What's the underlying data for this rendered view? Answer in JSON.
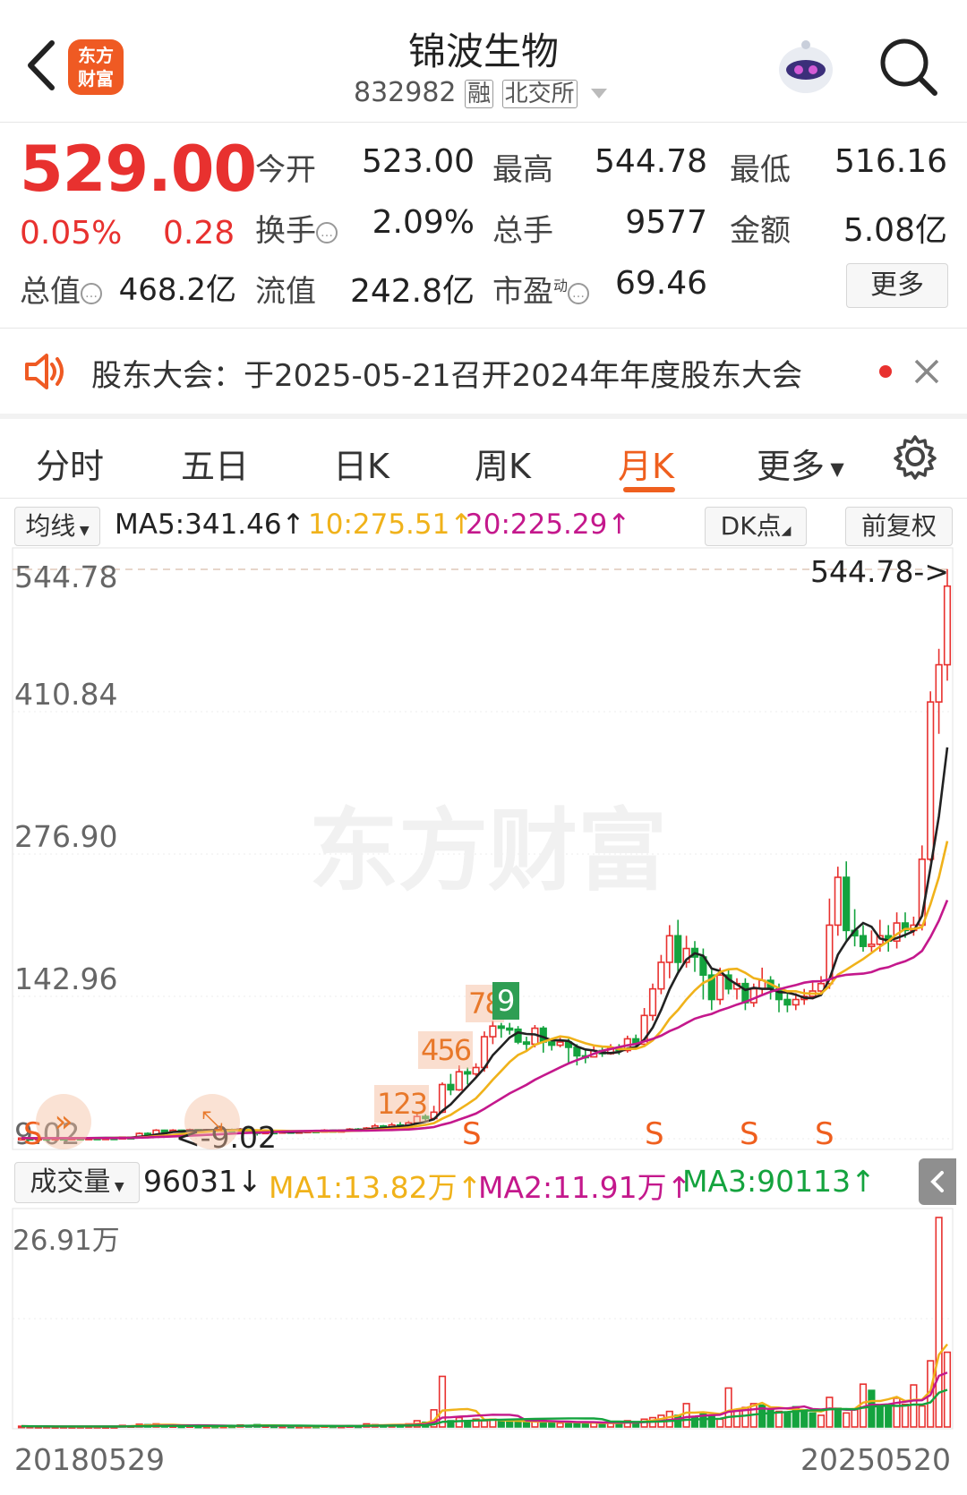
{
  "header": {
    "brand": "东方财富",
    "title": "锦波生物",
    "code": "832982",
    "tags": [
      "融",
      "北交所"
    ]
  },
  "quote": {
    "price": "529.00",
    "change_pct": "0.05%",
    "change": "0.28",
    "open_label": "今开",
    "open": "523.00",
    "high_label": "最高",
    "high": "544.78",
    "low_label": "最低",
    "low": "516.16",
    "turnover_label": "换手",
    "turnover": "2.09%",
    "volume_label": "总手",
    "volume": "9577",
    "amount_label": "金额",
    "amount": "5.08亿",
    "mktcap_label": "总值",
    "mktcap": "468.2亿",
    "float_label": "流值",
    "float": "242.8亿",
    "pe_label": "市盈",
    "pe_sup": "动",
    "pe": "69.46",
    "more_label": "更多"
  },
  "notice": {
    "text": "股东大会：于2025-05-21召开2024年年度股东大会"
  },
  "tabs": [
    "分时",
    "五日",
    "日K",
    "周K",
    "月K",
    "更多"
  ],
  "active_tab": "月K",
  "ma_bar": {
    "selector": "均线",
    "ma5": "MA5:341.46",
    "ma10": "10:275.51",
    "ma20": "20:225.29",
    "dk_label": "DK点",
    "adjust_label": "前复权",
    "colors": {
      "ma5": "#222222",
      "ma10": "#f0b21a",
      "ma20": "#c4188c"
    }
  },
  "vol_bar": {
    "selector": "成交量",
    "value": "96031",
    "ma1": "MA1:13.82万",
    "ma2": "MA2:11.91万",
    "ma3": "MA3:90113",
    "colors": {
      "ma1": "#f0b21a",
      "ma2": "#c4188c",
      "ma3": "#14a33e"
    }
  },
  "chart_data": {
    "type": "candlestick",
    "y_ticks": [
      "544.78",
      "410.84",
      "276.90",
      "142.96",
      "9.02"
    ],
    "high_marker": "544.78->",
    "low_marker": "<-9.02",
    "watermark": "东方财富",
    "signals": [
      "123",
      "456",
      "78",
      "9"
    ],
    "s_marker": "S",
    "vol_max_label": "26.91万",
    "x_start": "20180529",
    "x_end": "20250520",
    "candles": [
      [
        9.5,
        9.6,
        9.9,
        9.2
      ],
      [
        9.6,
        9.4,
        9.8,
        9.1
      ],
      [
        9.4,
        9.6,
        9.9,
        9.2
      ],
      [
        9.6,
        9.5,
        9.8,
        9.2
      ],
      [
        9.5,
        9.6,
        9.8,
        9.3
      ],
      [
        9.6,
        9.5,
        9.9,
        9.2
      ],
      [
        9.5,
        9.7,
        10.0,
        9.3
      ],
      [
        9.7,
        9.6,
        9.9,
        9.3
      ],
      [
        9.6,
        9.8,
        10.2,
        9.4
      ],
      [
        9.8,
        9.7,
        10.1,
        9.5
      ],
      [
        9.7,
        9.9,
        10.2,
        9.5
      ],
      [
        9.9,
        9.8,
        10.1,
        9.5
      ],
      [
        9.8,
        10.5,
        11.0,
        9.6
      ],
      [
        10.5,
        10.3,
        10.9,
        10.0
      ],
      [
        10.3,
        14.0,
        15.0,
        10.2
      ],
      [
        14.0,
        13.0,
        15.0,
        12.5
      ],
      [
        13.0,
        17.0,
        18.0,
        12.8
      ],
      [
        17.0,
        15.5,
        17.5,
        15.0
      ],
      [
        15.5,
        17.0,
        18.0,
        15.2
      ],
      [
        17.0,
        16.5,
        17.5,
        16.0
      ],
      [
        16.5,
        17.5,
        18.5,
        16.2
      ],
      [
        17.5,
        17.0,
        18.0,
        16.5
      ],
      [
        17.0,
        17.5,
        18.0,
        16.6
      ],
      [
        17.5,
        17.0,
        18.0,
        16.5
      ],
      [
        17.0,
        17.5,
        18.0,
        16.7
      ],
      [
        17.5,
        17.0,
        18.5,
        16.5
      ],
      [
        17.0,
        18.0,
        19.0,
        16.8
      ],
      [
        18.0,
        17.0,
        18.5,
        16.5
      ],
      [
        17.0,
        14.0,
        17.0,
        12.0
      ],
      [
        14.0,
        15.5,
        16.0,
        13.5
      ],
      [
        15.5,
        15.0,
        16.0,
        14.5
      ],
      [
        15.0,
        16.0,
        16.5,
        14.8
      ],
      [
        16.0,
        15.5,
        16.5,
        15.0
      ],
      [
        15.5,
        16.0,
        16.5,
        15.0
      ],
      [
        16.0,
        16.5,
        17.0,
        15.5
      ],
      [
        16.5,
        16.0,
        17.0,
        15.5
      ],
      [
        16.0,
        17.0,
        18.0,
        15.8
      ],
      [
        17.0,
        16.5,
        17.5,
        16.0
      ],
      [
        16.5,
        17.0,
        17.5,
        16.0
      ],
      [
        17.0,
        18.0,
        19.0,
        16.8
      ],
      [
        18.0,
        17.5,
        19.0,
        17.0
      ],
      [
        17.5,
        19.0,
        20.0,
        17.0
      ],
      [
        19.0,
        21.0,
        23.0,
        18.5
      ],
      [
        21.0,
        20.0,
        22.0,
        19.5
      ],
      [
        20.0,
        22.0,
        24.0,
        19.5
      ],
      [
        22.0,
        21.0,
        25.0,
        20.5
      ],
      [
        21.0,
        24.0,
        26.0,
        20.5
      ],
      [
        24.0,
        30.0,
        33.0,
        23.0
      ],
      [
        30.0,
        28.0,
        32.0,
        26.0
      ],
      [
        28.0,
        34.0,
        40.0,
        27.0
      ],
      [
        34.0,
        60.0,
        62.0,
        33.0
      ],
      [
        60.0,
        55.0,
        70.0,
        50.0
      ],
      [
        55.0,
        72.0,
        78.0,
        54.0
      ],
      [
        72.0,
        70.0,
        76.0,
        60.0
      ],
      [
        70.0,
        76.0,
        80.0,
        68.0
      ],
      [
        76.0,
        105.0,
        110.0,
        72.0
      ],
      [
        105.0,
        115.0,
        120.0,
        98.0
      ],
      [
        115.0,
        113.0,
        118.0,
        104.0
      ],
      [
        113.0,
        112.0,
        118.0,
        107.0
      ],
      [
        112.0,
        100.0,
        115.0,
        98.0
      ],
      [
        100.0,
        98.0,
        105.0,
        92.0
      ],
      [
        98.0,
        113.0,
        116.0,
        95.0
      ],
      [
        113.0,
        100.0,
        115.0,
        90.0
      ],
      [
        100.0,
        97.0,
        102.0,
        92.0
      ],
      [
        97.0,
        100.0,
        104.0,
        95.0
      ],
      [
        100.0,
        95.0,
        103.0,
        80.0
      ],
      [
        95.0,
        87.0,
        98.0,
        78.0
      ],
      [
        87.0,
        86.0,
        92.0,
        80.0
      ],
      [
        86.0,
        92.0,
        96.0,
        86.0
      ],
      [
        92.0,
        89.0,
        95.0,
        86.0
      ],
      [
        89.0,
        94.0,
        98.0,
        88.0
      ],
      [
        94.0,
        92.0,
        98.0,
        88.0
      ],
      [
        92.0,
        103.0,
        106.0,
        90.0
      ],
      [
        103.0,
        98.0,
        107.0,
        94.0
      ],
      [
        98.0,
        125.0,
        132.0,
        96.0
      ],
      [
        125.0,
        150.0,
        155.0,
        120.0
      ],
      [
        150.0,
        175.0,
        182.0,
        145.0
      ],
      [
        175.0,
        200.0,
        210.0,
        160.0
      ],
      [
        200.0,
        175.0,
        215.0,
        165.0
      ],
      [
        175.0,
        188.0,
        200.0,
        170.0
      ],
      [
        188.0,
        180.0,
        195.0,
        166.0
      ],
      [
        180.0,
        163.0,
        188.0,
        140.0
      ],
      [
        163.0,
        140.0,
        168.0,
        130.0
      ],
      [
        140.0,
        163.0,
        170.0,
        135.0
      ],
      [
        163.0,
        150.0,
        168.0,
        145.0
      ],
      [
        150.0,
        155.0,
        160.0,
        140.0
      ],
      [
        155.0,
        137.0,
        160.0,
        130.0
      ],
      [
        137.0,
        150.0,
        155.0,
        133.0
      ],
      [
        150.0,
        158.0,
        170.0,
        145.0
      ],
      [
        158.0,
        150.0,
        162.0,
        140.0
      ],
      [
        150.0,
        140.0,
        155.0,
        128.0
      ],
      [
        140.0,
        135.0,
        146.0,
        128.0
      ],
      [
        135.0,
        140.0,
        146.0,
        130.0
      ],
      [
        140.0,
        143.0,
        150.0,
        135.0
      ],
      [
        143.0,
        148.0,
        156.0,
        140.0
      ],
      [
        148.0,
        155.0,
        162.0,
        145.0
      ],
      [
        155.0,
        210.0,
        235.0,
        150.0
      ],
      [
        210.0,
        255.0,
        265.0,
        200.0
      ],
      [
        255.0,
        205.0,
        270.0,
        195.0
      ],
      [
        205.0,
        200.0,
        225.0,
        190.0
      ],
      [
        200.0,
        190.0,
        210.0,
        185.0
      ],
      [
        190.0,
        192.0,
        205.0,
        185.0
      ],
      [
        192.0,
        200.0,
        215.0,
        185.0
      ],
      [
        200.0,
        195.0,
        210.0,
        185.0
      ],
      [
        195.0,
        212.0,
        222.0,
        188.0
      ],
      [
        212.0,
        205.0,
        222.0,
        198.0
      ],
      [
        205.0,
        210.0,
        218.0,
        200.0
      ],
      [
        210.0,
        272.0,
        285.0,
        205.0
      ],
      [
        272.0,
        420.0,
        430.0,
        270.0
      ],
      [
        420.0,
        455.0,
        470.0,
        390.0
      ],
      [
        455.0,
        529.0,
        545.0,
        440.0
      ]
    ],
    "volumes": [
      [
        0.1,
        1
      ],
      [
        0.08,
        1
      ],
      [
        0.06,
        1
      ],
      [
        0.07,
        1
      ],
      [
        0.05,
        1
      ],
      [
        0.06,
        1
      ],
      [
        0.05,
        1
      ],
      [
        0.06,
        1
      ],
      [
        0.05,
        1
      ],
      [
        0.06,
        1
      ],
      [
        0.04,
        1
      ],
      [
        0.05,
        1
      ],
      [
        0.2,
        1
      ],
      [
        0.15,
        1
      ],
      [
        0.35,
        1
      ],
      [
        0.3,
        0
      ],
      [
        0.4,
        1
      ],
      [
        0.25,
        0
      ],
      [
        0.15,
        1
      ],
      [
        0.12,
        0
      ],
      [
        0.15,
        1
      ],
      [
        0.1,
        0
      ],
      [
        0.08,
        1
      ],
      [
        0.1,
        0
      ],
      [
        0.1,
        1
      ],
      [
        0.12,
        0
      ],
      [
        0.25,
        1
      ],
      [
        0.2,
        0
      ],
      [
        0.3,
        0
      ],
      [
        0.15,
        1
      ],
      [
        0.12,
        0
      ],
      [
        0.1,
        1
      ],
      [
        0.1,
        0
      ],
      [
        0.08,
        1
      ],
      [
        0.1,
        1
      ],
      [
        0.1,
        0
      ],
      [
        0.15,
        1
      ],
      [
        0.12,
        0
      ],
      [
        0.1,
        1
      ],
      [
        0.15,
        1
      ],
      [
        0.12,
        0
      ],
      [
        0.4,
        1
      ],
      [
        0.3,
        1
      ],
      [
        0.25,
        0
      ],
      [
        0.3,
        1
      ],
      [
        0.25,
        0
      ],
      [
        0.4,
        1
      ],
      [
        0.8,
        1
      ],
      [
        0.6,
        0
      ],
      [
        2.2,
        1
      ],
      [
        6.5,
        1
      ],
      [
        0.8,
        0
      ],
      [
        1.2,
        1
      ],
      [
        0.8,
        0
      ],
      [
        1.0,
        1
      ],
      [
        0.8,
        1
      ],
      [
        1.0,
        1
      ],
      [
        0.7,
        0
      ],
      [
        0.6,
        0
      ],
      [
        0.8,
        0
      ],
      [
        0.6,
        0
      ],
      [
        0.7,
        1
      ],
      [
        0.8,
        0
      ],
      [
        0.6,
        0
      ],
      [
        0.5,
        1
      ],
      [
        0.6,
        0
      ],
      [
        0.5,
        0
      ],
      [
        0.6,
        0
      ],
      [
        0.5,
        1
      ],
      [
        0.4,
        0
      ],
      [
        0.5,
        1
      ],
      [
        0.6,
        0
      ],
      [
        0.8,
        1
      ],
      [
        0.6,
        0
      ],
      [
        1.0,
        1
      ],
      [
        1.2,
        1
      ],
      [
        1.5,
        1
      ],
      [
        2.0,
        1
      ],
      [
        1.5,
        0
      ],
      [
        3.0,
        1
      ],
      [
        1.2,
        0
      ],
      [
        1.8,
        0
      ],
      [
        1.4,
        0
      ],
      [
        1.0,
        1
      ],
      [
        5.0,
        1
      ],
      [
        2.2,
        1
      ],
      [
        2.5,
        1
      ],
      [
        3.0,
        1
      ],
      [
        2.8,
        0
      ],
      [
        2.2,
        0
      ],
      [
        2.0,
        1
      ],
      [
        1.8,
        0
      ],
      [
        2.6,
        0
      ],
      [
        2.2,
        0
      ],
      [
        1.8,
        0
      ],
      [
        1.5,
        1
      ],
      [
        3.8,
        1
      ],
      [
        2.4,
        0
      ],
      [
        1.8,
        1
      ],
      [
        2.2,
        1
      ],
      [
        5.5,
        1
      ],
      [
        4.7,
        0
      ],
      [
        2.5,
        0
      ],
      [
        2.9,
        0
      ],
      [
        3.7,
        1
      ],
      [
        2.9,
        1
      ],
      [
        5.4,
        1
      ],
      [
        2.7,
        1
      ],
      [
        8.5,
        1
      ],
      [
        26.91,
        1
      ],
      [
        9.6,
        1
      ]
    ]
  }
}
